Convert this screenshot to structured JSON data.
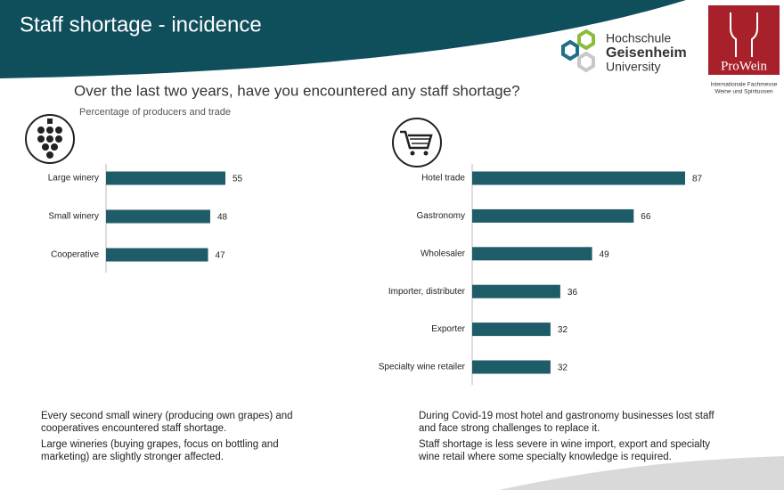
{
  "header": {
    "title": "Staff shortage - incidence",
    "university_logo": [
      "Hochschule",
      "Geisenheim",
      "University"
    ],
    "prowein_logo": "ProWein",
    "prowein_tagline": [
      "Internationale Fachmesse",
      "Weine und Spirituosen"
    ]
  },
  "question": "Over the last two years, have you encountered any staff shortage?",
  "subtitle": "Percentage of producers and trade",
  "chart_data": [
    {
      "type": "bar",
      "orientation": "horizontal",
      "color": "#1e5c68",
      "categories": [
        "Large winery",
        "Small winery",
        "Cooperative"
      ],
      "values": [
        55,
        48,
        47
      ]
    },
    {
      "type": "bar",
      "orientation": "horizontal",
      "color": "#1e5c68",
      "categories": [
        "Hotel trade",
        "Gastronomy",
        "Wholesaler",
        "Importer, distributer",
        "Exporter",
        "Specialty wine retailer"
      ],
      "values": [
        87,
        66,
        49,
        36,
        32,
        32
      ]
    }
  ],
  "notes": [
    [
      "Every second small winery (producing own grapes) and cooperatives encountered staff shortage.",
      "Large wineries (buying grapes, focus on bottling and marketing) are slightly stronger affected."
    ],
    [
      "During Covid-19 most hotel and gastronomy businesses lost staff and face strong challenges to replace it.",
      "Staff shortage is less severe in wine import, export and specialty wine retail where some specialty knowledge is required."
    ]
  ]
}
